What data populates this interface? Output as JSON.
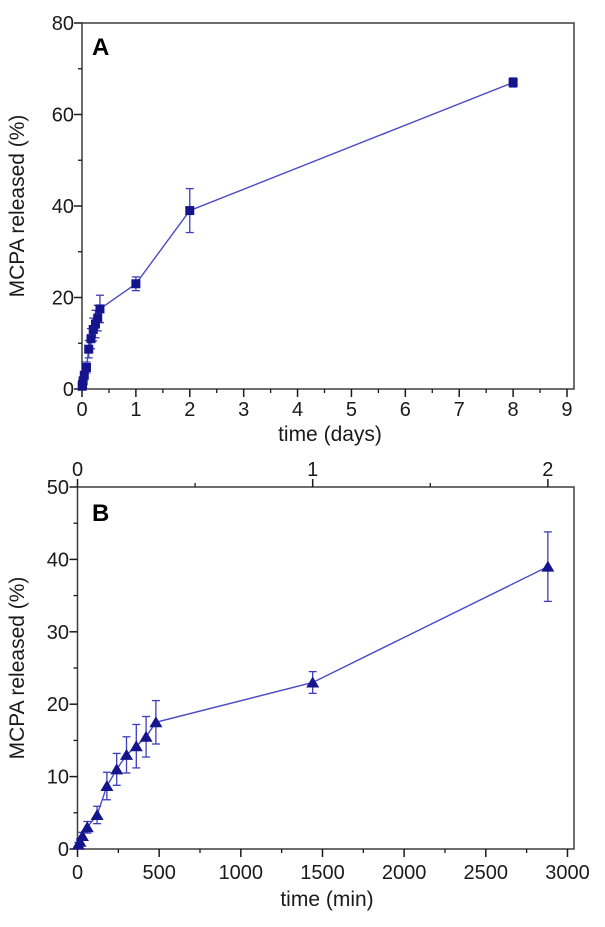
{
  "figure": {
    "background": "#ffffff",
    "colors": {
      "line": "#4a4ac6",
      "marker": "#14148c",
      "error_bar": "#3d3dbb",
      "frame": "#3d3d3d",
      "tick": "#1a1a1a",
      "text": "#1a1a1a"
    }
  },
  "chart_data": [
    {
      "id": "A",
      "type": "line",
      "panel_label": "A",
      "xlabel": "time (days)",
      "ylabel": "MCPA released (%)",
      "marker": "square",
      "xlim": [
        0,
        9.13
      ],
      "ylim": [
        0,
        80
      ],
      "x_ticks": [
        0,
        1,
        2,
        3,
        4,
        5,
        6,
        7,
        8,
        9
      ],
      "x_minor_step": 0.5,
      "y_ticks": [
        0,
        20,
        40,
        60,
        80
      ],
      "y_minor_step": 10,
      "grid": false,
      "legend": "none",
      "series": [
        {
          "name": "MCPA released",
          "x": [
            0.003,
            0.01,
            0.021,
            0.042,
            0.083,
            0.125,
            0.167,
            0.208,
            0.25,
            0.292,
            0.333,
            1,
            2,
            8
          ],
          "y": [
            0.6,
            1.0,
            1.8,
            3.0,
            4.7,
            8.7,
            11.0,
            13.0,
            14.2,
            15.5,
            17.5,
            23.0,
            39.0,
            67.0
          ],
          "yerr": [
            0.3,
            0.4,
            0.5,
            0.8,
            1.2,
            1.9,
            2.2,
            2.5,
            3.0,
            2.8,
            3.0,
            1.5,
            4.8,
            1.0
          ]
        }
      ]
    },
    {
      "id": "B",
      "type": "line",
      "panel_label": "B",
      "xlabel": "time (min)",
      "ylabel": "MCPA released (%)",
      "marker": "triangle",
      "xlim": [
        0,
        3040
      ],
      "ylim": [
        0,
        50
      ],
      "x_ticks": [
        0,
        500,
        1000,
        1500,
        2000,
        2500,
        3000
      ],
      "x_minor_step": 250,
      "y_ticks": [
        0,
        10,
        20,
        30,
        40,
        50
      ],
      "y_minor_step": 5,
      "grid": false,
      "legend": "none",
      "top_axis": {
        "unit": "days",
        "minutes_per_unit": 1440,
        "ticks": [
          0,
          1,
          2
        ],
        "minor_ticks": [
          0.5,
          1.5
        ]
      },
      "series": [
        {
          "name": "MCPA released",
          "x": [
            5,
            15,
            30,
            60,
            120,
            180,
            240,
            300,
            360,
            420,
            480,
            1440,
            2880
          ],
          "y": [
            0.6,
            1.0,
            1.8,
            3.0,
            4.7,
            8.7,
            11.0,
            13.0,
            14.2,
            15.5,
            17.5,
            23.0,
            39.0
          ],
          "yerr": [
            0.3,
            0.4,
            0.5,
            0.8,
            1.2,
            1.9,
            2.2,
            2.5,
            3.0,
            2.8,
            3.0,
            1.5,
            4.8
          ]
        }
      ]
    }
  ]
}
